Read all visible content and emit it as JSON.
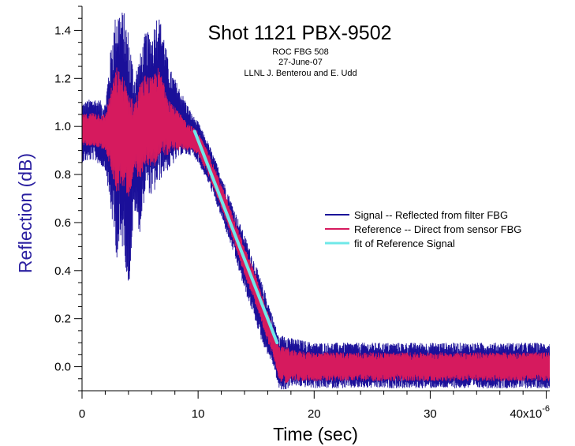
{
  "chart_data": {
    "type": "line",
    "title": "Shot 1121 PBX-9502",
    "subtitle_lines": [
      "ROC FBG 508",
      "27-June-07",
      "LLNL J. Benterou and E. Udd"
    ],
    "xlabel": "Time (sec)",
    "ylabel": "Reflection (dB)",
    "x_multiplier_label": "x10",
    "x_multiplier_exp": "-6",
    "xlim": [
      0,
      40.3
    ],
    "ylim": [
      -0.1,
      1.5
    ],
    "x_ticks": [
      0,
      10,
      20,
      30,
      40
    ],
    "x_tick_labels": [
      "0",
      "10",
      "20",
      "30",
      "40"
    ],
    "y_ticks": [
      0.0,
      0.2,
      0.4,
      0.6,
      0.8,
      1.0,
      1.2,
      1.4
    ],
    "y_tick_labels": [
      "0.0",
      "0.2",
      "0.4",
      "0.6",
      "0.8",
      "1.0",
      "1.2",
      "1.4"
    ],
    "legend_position": "center-right",
    "series": [
      {
        "name": "Signal -- Reflected from filter FBG",
        "color": "#1a0f99",
        "envelope": {
          "x": [
            0,
            1,
            2,
            2.6,
            3,
            3.6,
            4,
            4.5,
            5,
            5.5,
            6,
            6.5,
            7,
            7.5,
            8,
            8.5,
            9,
            9.5,
            10,
            11,
            12,
            13,
            14,
            15,
            15.5,
            16,
            16.5,
            17,
            17.5,
            18,
            20,
            25,
            30,
            35,
            40.3
          ],
          "upper": [
            1.1,
            1.12,
            1.1,
            1.38,
            1.5,
            1.48,
            1.4,
            1.22,
            1.3,
            1.4,
            1.38,
            1.48,
            1.4,
            1.25,
            1.2,
            1.15,
            1.1,
            1.05,
            1.02,
            0.92,
            0.8,
            0.67,
            0.55,
            0.42,
            0.35,
            0.28,
            0.2,
            0.12,
            0.14,
            0.12,
            0.1,
            0.1,
            0.1,
            0.1,
            0.1
          ],
          "lower": [
            0.85,
            0.86,
            0.82,
            0.6,
            0.45,
            0.5,
            0.3,
            0.65,
            0.55,
            0.75,
            0.7,
            0.75,
            0.8,
            0.82,
            0.85,
            0.88,
            0.88,
            0.88,
            0.85,
            0.75,
            0.62,
            0.48,
            0.32,
            0.18,
            0.1,
            0.05,
            0.0,
            -0.1,
            -0.1,
            -0.08,
            -0.09,
            -0.09,
            -0.09,
            -0.09,
            -0.09
          ]
        }
      },
      {
        "name": "Reference -- Direct from sensor FBG",
        "color": "#d61a5e",
        "envelope": {
          "x": [
            0,
            1,
            2,
            2.6,
            3,
            3.6,
            4,
            4.5,
            5,
            5.5,
            6,
            6.5,
            7,
            7.5,
            8,
            8.5,
            9,
            9.5,
            10,
            11,
            12,
            13,
            14,
            15,
            15.5,
            16,
            16.5,
            17,
            17.5,
            18,
            20,
            25,
            30,
            35,
            40.3
          ],
          "upper": [
            1.05,
            1.06,
            1.05,
            1.18,
            1.25,
            1.2,
            1.15,
            1.1,
            1.18,
            1.22,
            1.2,
            1.25,
            1.2,
            1.12,
            1.08,
            1.05,
            1.02,
            1.0,
            0.98,
            0.88,
            0.76,
            0.63,
            0.5,
            0.38,
            0.3,
            0.23,
            0.16,
            0.08,
            0.09,
            0.07,
            0.06,
            0.06,
            0.06,
            0.06,
            0.06
          ],
          "lower": [
            0.92,
            0.92,
            0.9,
            0.8,
            0.72,
            0.75,
            0.7,
            0.8,
            0.78,
            0.85,
            0.82,
            0.85,
            0.88,
            0.88,
            0.9,
            0.9,
            0.9,
            0.9,
            0.88,
            0.78,
            0.66,
            0.52,
            0.38,
            0.25,
            0.18,
            0.1,
            0.04,
            -0.06,
            -0.07,
            -0.06,
            -0.06,
            -0.06,
            -0.06,
            -0.06,
            -0.06
          ]
        }
      },
      {
        "name": "fit of Reference Signal",
        "color": "#6fe8e8",
        "x": [
          9.7,
          16.8
        ],
        "y": [
          0.98,
          0.1
        ]
      }
    ]
  }
}
